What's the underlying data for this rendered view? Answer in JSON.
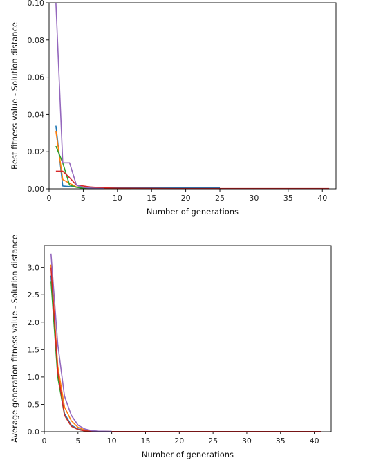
{
  "chart_data": [
    {
      "type": "line",
      "title": "",
      "xlabel": "Number of generations",
      "ylabel": "Best fitness value - Solution distance",
      "xlim": [
        0,
        42
      ],
      "ylim": [
        0,
        0.1
      ],
      "xticks": [
        0,
        5,
        10,
        15,
        20,
        25,
        30,
        35,
        40
      ],
      "yticks": [
        0.0,
        0.02,
        0.04,
        0.06,
        0.08,
        0.1
      ],
      "ytick_labels": [
        "0.00",
        "0.02",
        "0.04",
        "0.06",
        "0.08",
        "0.10"
      ],
      "grid": false,
      "series": [
        {
          "color": "#1f77b4",
          "x": [
            1,
            2,
            3,
            4,
            5,
            6,
            8,
            10,
            15,
            20,
            25
          ],
          "y": [
            0.034,
            0.0015,
            0.0012,
            0.001,
            0.0008,
            0.0007,
            0.0006,
            0.0005,
            0.0005,
            0.0005,
            0.0005
          ]
        },
        {
          "color": "#ff7f0e",
          "x": [
            1,
            2,
            3,
            4,
            5,
            6,
            8,
            10,
            12
          ],
          "y": [
            0.031,
            0.005,
            0.003,
            0.001,
            0.0005,
            0.0003,
            0.0002,
            0.0001,
            0.0001
          ]
        },
        {
          "color": "#2ca02c",
          "x": [
            1,
            2,
            3,
            4,
            5,
            6,
            8
          ],
          "y": [
            0.023,
            0.014,
            0.002,
            0.0008,
            0.0003,
            0.0001,
            0.0001
          ]
        },
        {
          "color": "#d62728",
          "x": [
            1,
            2,
            3,
            4,
            5,
            6,
            8,
            10,
            15,
            20,
            25,
            30,
            35,
            41
          ],
          "y": [
            0.0095,
            0.0095,
            0.006,
            0.002,
            0.0015,
            0.001,
            0.0005,
            0.0003,
            0.0002,
            0.0001,
            0.0001,
            0.0001,
            0.0001,
            0.0001
          ]
        },
        {
          "color": "#9467bd",
          "x": [
            1,
            2,
            3,
            4,
            5,
            6,
            8
          ],
          "y": [
            0.1,
            0.014,
            0.014,
            0.002,
            0.0008,
            0.0003,
            0.0001
          ]
        }
      ]
    },
    {
      "type": "line",
      "title": "",
      "xlabel": "Number of generations",
      "ylabel": "Average generation fitness value - Solution distance",
      "xlim": [
        0,
        42.5
      ],
      "ylim": [
        0,
        3.4
      ],
      "xticks": [
        0,
        5,
        10,
        15,
        20,
        25,
        30,
        35,
        40
      ],
      "yticks": [
        0.0,
        0.5,
        1.0,
        1.5,
        2.0,
        2.5,
        3.0
      ],
      "ytick_labels": [
        "0.0",
        "0.5",
        "1.0",
        "1.5",
        "2.0",
        "2.5",
        "3.0"
      ],
      "grid": false,
      "series": [
        {
          "color": "#1f77b4",
          "x": [
            1,
            2,
            3,
            4,
            5,
            6,
            7,
            8,
            10,
            15,
            20,
            26
          ],
          "y": [
            2.85,
            1.05,
            0.33,
            0.12,
            0.05,
            0.02,
            0.01,
            0.005,
            0.002,
            0.001,
            0.001,
            0.001
          ]
        },
        {
          "color": "#ff7f0e",
          "x": [
            1,
            2,
            3,
            4,
            5,
            6,
            7,
            8,
            10,
            15
          ],
          "y": [
            3.05,
            1.2,
            0.45,
            0.2,
            0.08,
            0.03,
            0.015,
            0.008,
            0.003,
            0.001
          ]
        },
        {
          "color": "#2ca02c",
          "x": [
            1,
            2,
            3,
            4,
            5,
            6,
            7,
            8,
            10
          ],
          "y": [
            2.75,
            1.0,
            0.3,
            0.1,
            0.04,
            0.015,
            0.008,
            0.004,
            0.002
          ]
        },
        {
          "color": "#d62728",
          "x": [
            1,
            2,
            3,
            4,
            5,
            6,
            7,
            8,
            10,
            15,
            20,
            25,
            30,
            35,
            41
          ],
          "y": [
            3.0,
            1.1,
            0.3,
            0.1,
            0.04,
            0.015,
            0.008,
            0.005,
            0.003,
            0.002,
            0.002,
            0.002,
            0.002,
            0.002,
            0.002
          ]
        },
        {
          "color": "#9467bd",
          "x": [
            1,
            2,
            3,
            4,
            5,
            6,
            7,
            8,
            10
          ],
          "y": [
            3.25,
            1.6,
            0.65,
            0.3,
            0.12,
            0.05,
            0.02,
            0.01,
            0.005
          ]
        }
      ]
    }
  ]
}
